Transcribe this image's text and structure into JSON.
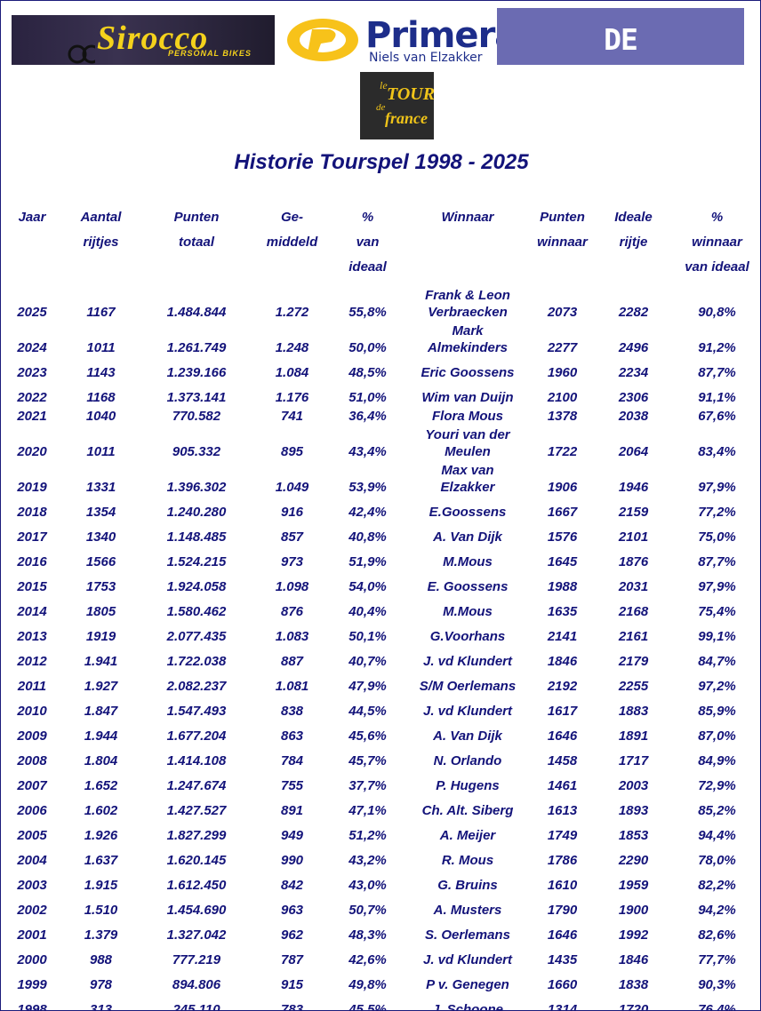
{
  "logos": {
    "sirocco": {
      "name": "Sirocco",
      "tagline": "PERSONAL BIKES"
    },
    "primera": {
      "name": "Primera",
      "subtitle": "Niels van Elzakker"
    },
    "zuidwestkrant": "DE ZUIDWESTKRANT",
    "tour": [
      "le",
      "TOUR",
      "de",
      "france"
    ]
  },
  "title": "Historie Tourspel 1998 - 2025",
  "table": {
    "header": [
      [
        "Jaar"
      ],
      [
        "Aantal",
        "rijtjes"
      ],
      [
        "Punten",
        "totaal"
      ],
      [
        "Ge-",
        "middeld"
      ],
      [
        "%",
        "van",
        "ideaal"
      ],
      [
        "Winnaar"
      ],
      [
        "Punten",
        "winnaar"
      ],
      [
        "Ideale",
        "rijtje"
      ],
      [
        "%",
        "winnaar",
        "van ideaal"
      ]
    ],
    "rows": [
      [
        "2025",
        "1167",
        "1.484.844",
        "1.272",
        "55,8%",
        "Frank & Leon Verbraecken",
        "2073",
        "2282",
        "90,8%"
      ],
      [
        "2024",
        "1011",
        "1.261.749",
        "1.248",
        "50,0%",
        "Mark Almekinders",
        "2277",
        "2496",
        "91,2%"
      ],
      [
        "2023",
        "1143",
        "1.239.166",
        "1.084",
        "48,5%",
        "Eric Goossens",
        "1960",
        "2234",
        "87,7%"
      ],
      [
        "2022",
        "1168",
        "1.373.141",
        "1.176",
        "51,0%",
        "Wim van Duijn",
        "2100",
        "2306",
        "91,1%"
      ],
      [
        "2021",
        "1040",
        "770.582",
        "741",
        "36,4%",
        "Flora Mous",
        "1378",
        "2038",
        "67,6%"
      ],
      [
        "2020",
        "1011",
        "905.332",
        "895",
        "43,4%",
        "Youri van der Meulen",
        "1722",
        "2064",
        "83,4%"
      ],
      [
        "2019",
        "1331",
        "1.396.302",
        "1.049",
        "53,9%",
        "Max van Elzakker",
        "1906",
        "1946",
        "97,9%"
      ],
      [
        "2018",
        "1354",
        "1.240.280",
        "916",
        "42,4%",
        "E.Goossens",
        "1667",
        "2159",
        "77,2%"
      ],
      [
        "2017",
        "1340",
        "1.148.485",
        "857",
        "40,8%",
        "A. Van Dijk",
        "1576",
        "2101",
        "75,0%"
      ],
      [
        "2016",
        "1566",
        "1.524.215",
        "973",
        "51,9%",
        "M.Mous",
        "1645",
        "1876",
        "87,7%"
      ],
      [
        "2015",
        "1753",
        "1.924.058",
        "1.098",
        "54,0%",
        "E. Goossens",
        "1988",
        "2031",
        "97,9%"
      ],
      [
        "2014",
        "1805",
        "1.580.462",
        "876",
        "40,4%",
        "M.Mous",
        "1635",
        "2168",
        "75,4%"
      ],
      [
        "2013",
        "1919",
        "2.077.435",
        "1.083",
        "50,1%",
        "G.Voorhans",
        "2141",
        "2161",
        "99,1%"
      ],
      [
        "2012",
        "1.941",
        "1.722.038",
        "887",
        "40,7%",
        "J. vd Klundert",
        "1846",
        "2179",
        "84,7%"
      ],
      [
        "2011",
        "1.927",
        "2.082.237",
        "1.081",
        "47,9%",
        "S/M Oerlemans",
        "2192",
        "2255",
        "97,2%"
      ],
      [
        "2010",
        "1.847",
        "1.547.493",
        "838",
        "44,5%",
        "J. vd Klundert",
        "1617",
        "1883",
        "85,9%"
      ],
      [
        "2009",
        "1.944",
        "1.677.204",
        "863",
        "45,6%",
        "A. Van Dijk",
        "1646",
        "1891",
        "87,0%"
      ],
      [
        "2008",
        "1.804",
        "1.414.108",
        "784",
        "45,7%",
        "N. Orlando",
        "1458",
        "1717",
        "84,9%"
      ],
      [
        "2007",
        "1.652",
        "1.247.674",
        "755",
        "37,7%",
        "P. Hugens",
        "1461",
        "2003",
        "72,9%"
      ],
      [
        "2006",
        "1.602",
        "1.427.527",
        "891",
        "47,1%",
        "Ch. Alt. Siberg",
        "1613",
        "1893",
        "85,2%"
      ],
      [
        "2005",
        "1.926",
        "1.827.299",
        "949",
        "51,2%",
        "A. Meijer",
        "1749",
        "1853",
        "94,4%"
      ],
      [
        "2004",
        "1.637",
        "1.620.145",
        "990",
        "43,2%",
        "R. Mous",
        "1786",
        "2290",
        "78,0%"
      ],
      [
        "2003",
        "1.915",
        "1.612.450",
        "842",
        "43,0%",
        "G. Bruins",
        "1610",
        "1959",
        "82,2%"
      ],
      [
        "2002",
        "1.510",
        "1.454.690",
        "963",
        "50,7%",
        "A. Musters",
        "1790",
        "1900",
        "94,2%"
      ],
      [
        "2001",
        "1.379",
        "1.327.042",
        "962",
        "48,3%",
        "S. Oerlemans",
        "1646",
        "1992",
        "82,6%"
      ],
      [
        "2000",
        "988",
        "777.219",
        "787",
        "42,6%",
        "J. vd Klundert",
        "1435",
        "1846",
        "77,7%"
      ],
      [
        "1999",
        "978",
        "894.806",
        "915",
        "49,8%",
        "P v. Genegen",
        "1660",
        "1838",
        "90,3%"
      ],
      [
        "1998",
        "313",
        "245.110",
        "783",
        "45,5%",
        "J. Schoone",
        "1314",
        "1720",
        "76,4%"
      ]
    ]
  }
}
